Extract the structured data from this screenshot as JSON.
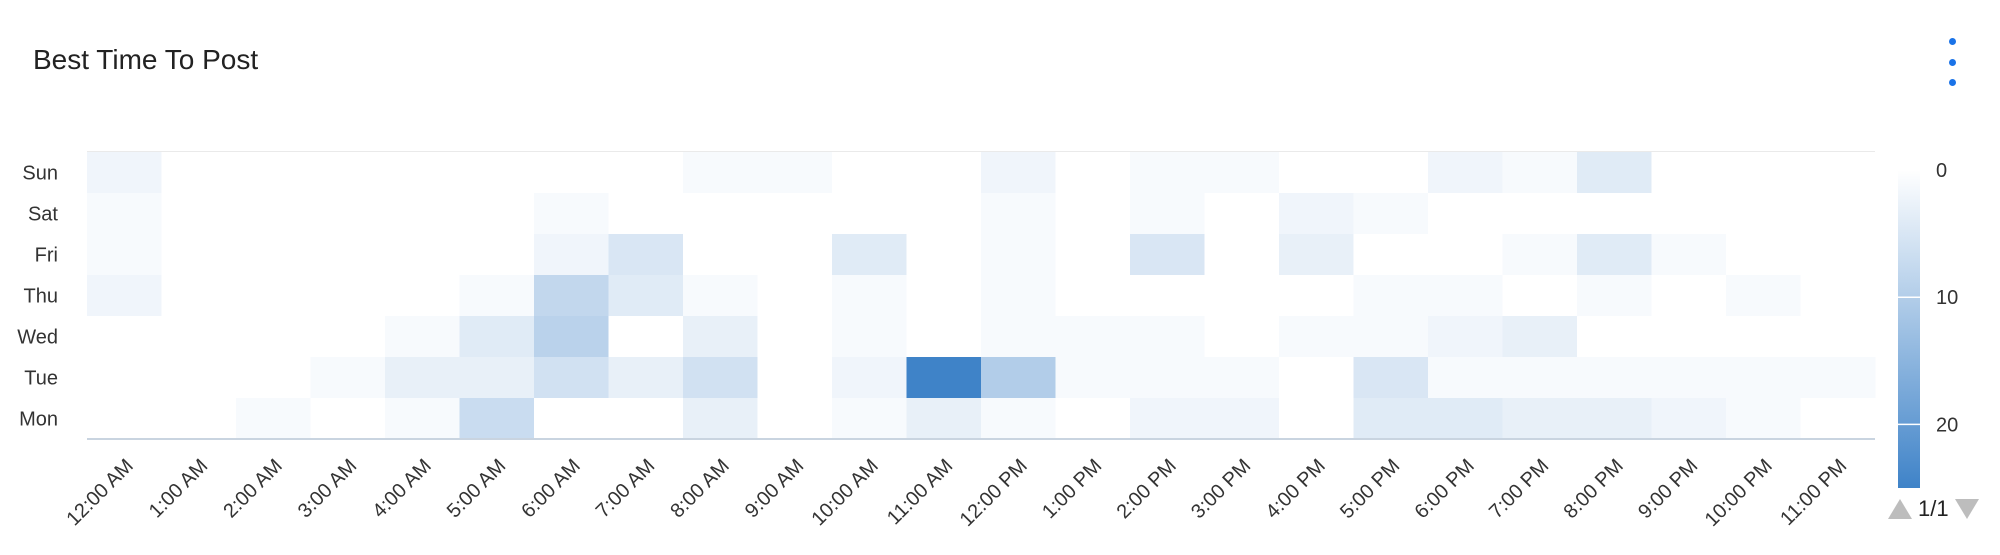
{
  "header": {
    "title": "Best Time To Post",
    "menu_icon": "more-vertical-icon"
  },
  "pager": {
    "text": "1/1",
    "prev_icon": "triangle-up-icon",
    "next_icon": "triangle-down-icon"
  },
  "chart_data": {
    "type": "heatmap",
    "title": "Best Time To Post",
    "rows": [
      "Sun",
      "Sat",
      "Fri",
      "Thu",
      "Wed",
      "Tue",
      "Mon"
    ],
    "columns": [
      "12:00 AM",
      "1:00 AM",
      "2:00 AM",
      "3:00 AM",
      "4:00 AM",
      "5:00 AM",
      "6:00 AM",
      "7:00 AM",
      "8:00 AM",
      "9:00 AM",
      "10:00 AM",
      "11:00 AM",
      "12:00 PM",
      "1:00 PM",
      "2:00 PM",
      "3:00 PM",
      "4:00 PM",
      "5:00 PM",
      "6:00 PM",
      "7:00 PM",
      "8:00 PM",
      "9:00 PM",
      "10:00 PM",
      "11:00 PM"
    ],
    "values": [
      [
        2,
        0,
        0,
        0,
        0,
        0,
        0,
        0,
        1,
        1,
        0,
        0,
        2,
        0,
        1,
        1,
        0,
        0,
        2,
        1,
        4,
        0,
        0,
        0
      ],
      [
        1,
        0,
        0,
        0,
        0,
        0,
        1,
        0,
        0,
        0,
        0,
        0,
        1,
        0,
        1,
        0,
        2,
        1,
        0,
        0,
        0,
        0,
        0,
        0
      ],
      [
        1,
        0,
        0,
        0,
        0,
        0,
        2,
        5,
        0,
        0,
        4,
        0,
        1,
        0,
        5,
        0,
        3,
        0,
        0,
        1,
        4,
        1,
        0,
        0
      ],
      [
        2,
        0,
        0,
        0,
        0,
        1,
        8,
        4,
        1,
        0,
        1,
        0,
        1,
        0,
        0,
        0,
        0,
        1,
        1,
        0,
        1,
        0,
        1,
        0
      ],
      [
        0,
        0,
        0,
        0,
        1,
        4,
        9,
        0,
        3,
        0,
        1,
        0,
        1,
        1,
        1,
        0,
        1,
        1,
        2,
        3,
        0,
        0,
        0,
        0
      ],
      [
        0,
        0,
        0,
        1,
        3,
        3,
        6,
        3,
        6,
        0,
        2,
        25,
        10,
        1,
        1,
        1,
        0,
        5,
        1,
        1,
        1,
        1,
        1,
        1
      ],
      [
        0,
        0,
        1,
        0,
        1,
        7,
        0,
        0,
        3,
        0,
        1,
        3,
        1,
        0,
        2,
        2,
        0,
        4,
        4,
        3,
        3,
        2,
        1,
        0
      ]
    ],
    "color_scale": {
      "min": 0,
      "max": 25,
      "low_color": "#ffffff",
      "high_color": "#3f83c8"
    },
    "legend": {
      "ticks": [
        0,
        10,
        20
      ],
      "position": "right"
    }
  }
}
